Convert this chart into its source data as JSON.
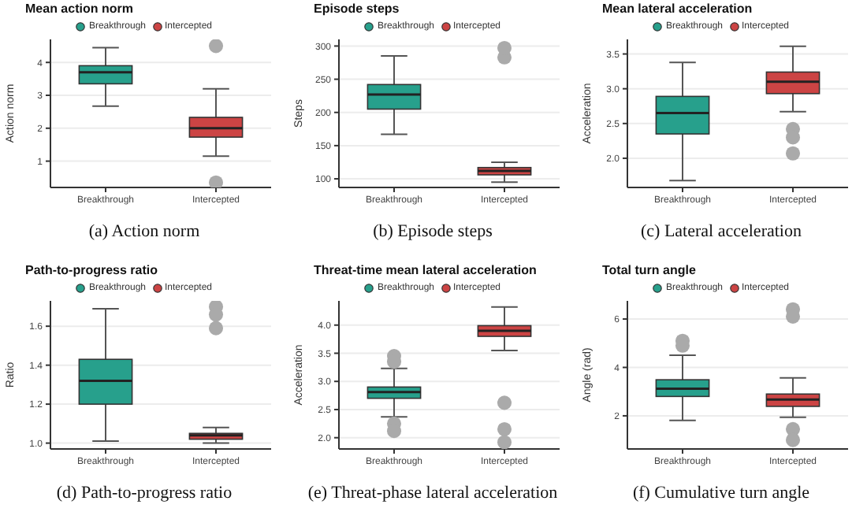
{
  "chart_data": [
    {
      "type": "box",
      "title": "Mean action norm",
      "ylabel": "Action norm",
      "categories": [
        "Breakthrough",
        "Intercepted"
      ],
      "legend": "top",
      "grid": "y",
      "ylim": [
        0.2,
        4.7
      ],
      "yticks": [
        1,
        2,
        3,
        4
      ],
      "annotations": [
        "(a) Action norm"
      ],
      "series": [
        {
          "name": "Breakthrough",
          "color": "#27a08c",
          "boxes": [
            {
              "low": 2.67,
              "q1": 3.35,
              "median": 3.7,
              "q3": 3.9,
              "high": 4.45
            },
            null
          ]
        },
        {
          "name": "Intercepted",
          "color": "#cc4444",
          "boxes": [
            null,
            {
              "low": 1.15,
              "q1": 1.73,
              "median": 2.0,
              "q3": 2.33,
              "high": 3.2,
              "outliers": [
                4.5,
                0.35
              ]
            }
          ]
        }
      ]
    },
    {
      "type": "box",
      "title": "Episode steps",
      "ylabel": "Steps",
      "categories": [
        "Breakthrough",
        "Intercepted"
      ],
      "legend": "top",
      "grid": "y",
      "ylim": [
        87,
        310
      ],
      "yticks": [
        100,
        150,
        200,
        250,
        300
      ],
      "annotations": [
        "(b) Episode steps"
      ],
      "series": [
        {
          "name": "Breakthrough",
          "color": "#27a08c",
          "boxes": [
            {
              "low": 167,
              "q1": 205,
              "median": 227,
              "q3": 242,
              "high": 285
            },
            null
          ]
        },
        {
          "name": "Intercepted",
          "color": "#cc4444",
          "boxes": [
            null,
            {
              "low": 95,
              "q1": 106,
              "median": 112,
              "q3": 117,
              "high": 125,
              "outliers": [
                283,
                297
              ]
            }
          ]
        }
      ]
    },
    {
      "type": "box",
      "title": "Mean lateral acceleration",
      "ylabel": "Acceleration",
      "categories": [
        "Breakthrough",
        "Intercepted"
      ],
      "legend": "top",
      "grid": "y",
      "ylim": [
        1.58,
        3.71
      ],
      "yticks": [
        {
          "value": 2,
          "label": "2.0"
        },
        2.5,
        {
          "value": 3,
          "label": "3.0"
        },
        3.5
      ],
      "annotations": [
        "(c) Lateral acceleration"
      ],
      "series": [
        {
          "name": "Breakthrough",
          "color": "#27a08c",
          "boxes": [
            {
              "low": 1.68,
              "q1": 2.35,
              "median": 2.65,
              "q3": 2.89,
              "high": 3.38
            },
            null
          ]
        },
        {
          "name": "Intercepted",
          "color": "#cc4444",
          "boxes": [
            null,
            {
              "low": 2.67,
              "q1": 2.93,
              "median": 3.1,
              "q3": 3.24,
              "high": 3.61,
              "outliers": [
                2.42,
                2.3,
                2.07
              ]
            }
          ]
        }
      ]
    },
    {
      "type": "box",
      "title": "Path-to-progress ratio",
      "ylabel": "Ratio",
      "categories": [
        "Breakthrough",
        "Intercepted"
      ],
      "legend": "top",
      "grid": "y",
      "ylim": [
        0.97,
        1.73
      ],
      "yticks": [
        {
          "value": 1,
          "label": "1.0"
        },
        1.2,
        1.4,
        1.6
      ],
      "annotations": [
        "(d) Path-to-progress ratio"
      ],
      "series": [
        {
          "name": "Breakthrough",
          "color": "#27a08c",
          "boxes": [
            {
              "low": 1.01,
              "q1": 1.2,
              "median": 1.32,
              "q3": 1.43,
              "high": 1.69
            },
            null
          ]
        },
        {
          "name": "Intercepted",
          "color": "#cc4444",
          "boxes": [
            null,
            {
              "low": 1.0,
              "q1": 1.02,
              "median": 1.04,
              "q3": 1.05,
              "high": 1.08,
              "outliers": [
                1.7,
                1.66,
                1.59
              ]
            }
          ]
        }
      ]
    },
    {
      "type": "box",
      "title": "Threat-time mean lateral acceleration",
      "ylabel": "Acceleration",
      "categories": [
        "Breakthrough",
        "Intercepted"
      ],
      "legend": "top",
      "grid": "y",
      "ylim": [
        1.8,
        4.43
      ],
      "yticks": [
        {
          "value": 2,
          "label": "2.0"
        },
        2.5,
        {
          "value": 3,
          "label": "3.0"
        },
        3.5,
        {
          "value": 4,
          "label": "4.0"
        }
      ],
      "annotations": [
        "(e) Threat-phase lateral acceleration"
      ],
      "series": [
        {
          "name": "Breakthrough",
          "color": "#27a08c",
          "boxes": [
            {
              "low": 2.37,
              "q1": 2.7,
              "median": 2.81,
              "q3": 2.9,
              "high": 3.23,
              "outliers": [
                3.45,
                3.35,
                2.25,
                2.12
              ]
            },
            null
          ]
        },
        {
          "name": "Intercepted",
          "color": "#cc4444",
          "boxes": [
            null,
            {
              "low": 3.55,
              "q1": 3.8,
              "median": 3.9,
              "q3": 3.99,
              "high": 4.32,
              "outliers": [
                2.62,
                2.15,
                1.92
              ]
            }
          ]
        }
      ]
    },
    {
      "type": "box",
      "title": "Total turn angle",
      "ylabel": "Angle (rad)",
      "categories": [
        "Breakthrough",
        "Intercepted"
      ],
      "legend": "top",
      "grid": "y",
      "ylim": [
        0.63,
        6.75
      ],
      "yticks": [
        2,
        4,
        6
      ],
      "annotations": [
        "(f) Cumulative turn angle"
      ],
      "series": [
        {
          "name": "Breakthrough",
          "color": "#27a08c",
          "boxes": [
            {
              "low": 1.81,
              "q1": 2.8,
              "median": 3.12,
              "q3": 3.49,
              "high": 4.5,
              "outliers": [
                5.1,
                4.9
              ]
            },
            null
          ]
        },
        {
          "name": "Intercepted",
          "color": "#cc4444",
          "boxes": [
            null,
            {
              "low": 1.94,
              "q1": 2.39,
              "median": 2.67,
              "q3": 2.9,
              "high": 3.57,
              "outliers": [
                6.4,
                6.1,
                1.45,
                1.0
              ]
            }
          ]
        }
      ]
    }
  ]
}
